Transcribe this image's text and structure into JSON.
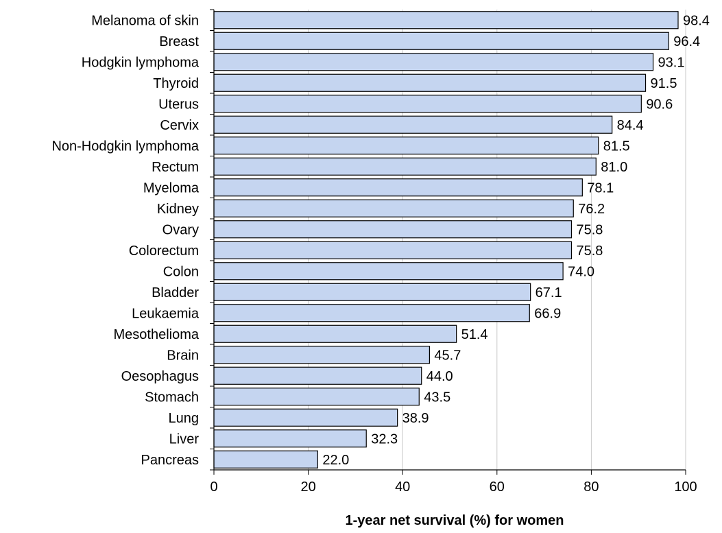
{
  "chart_data": {
    "type": "bar",
    "orientation": "horizontal",
    "categories": [
      "Melanoma of skin",
      "Breast",
      "Hodgkin lymphoma",
      "Thyroid",
      "Uterus",
      "Cervix",
      "Non-Hodgkin lymphoma",
      "Rectum",
      "Myeloma",
      "Kidney",
      "Ovary",
      "Colorectum",
      "Colon",
      "Bladder",
      "Leukaemia",
      "Mesothelioma",
      "Brain",
      "Oesophagus",
      "Stomach",
      "Lung",
      "Liver",
      "Pancreas"
    ],
    "values": [
      98.4,
      96.4,
      93.1,
      91.5,
      90.6,
      84.4,
      81.5,
      81.0,
      78.1,
      76.2,
      75.8,
      75.8,
      74.0,
      67.1,
      66.9,
      51.4,
      45.7,
      44.0,
      43.5,
      38.9,
      32.3,
      22.0
    ],
    "value_labels": [
      "98.4",
      "96.4",
      "93.1",
      "91.5",
      "90.6",
      "84.4",
      "81.5",
      "81.0",
      "78.1",
      "76.2",
      "75.8",
      "75.8",
      "74.0",
      "67.1",
      "66.9",
      "51.4",
      "45.7",
      "44.0",
      "43.5",
      "38.9",
      "32.3",
      "22.0"
    ],
    "xlabel": "1-year net survival (%) for women",
    "ylabel": "",
    "title": "",
    "xlim": [
      0,
      100
    ],
    "xticks": [
      0,
      20,
      40,
      60,
      80,
      100
    ],
    "xtick_labels": [
      "0",
      "20",
      "40",
      "60",
      "80",
      "100"
    ],
    "grid": "vertical",
    "legend": "none",
    "colors": {
      "bar_fill": "#c5d5f0",
      "bar_stroke": "#000000",
      "grid": "#c8c8c8",
      "axis": "#000000"
    }
  }
}
